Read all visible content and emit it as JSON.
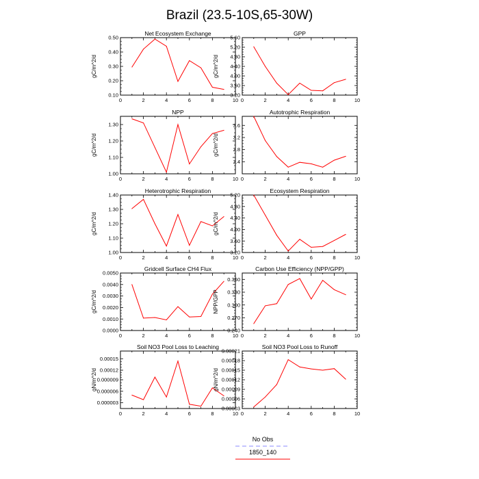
{
  "figure": {
    "title": "Brazil (23.5-10S,65-30W)"
  },
  "legend": {
    "items": [
      {
        "label": "No Obs",
        "color": "#8888ff",
        "dash": true
      },
      {
        "label": "1850_140",
        "color": "#ff0000",
        "dash": false
      }
    ]
  },
  "chart_data": [
    {
      "type": "line",
      "title": "Net Ecosystem Exchange",
      "ylabel": "gC/m^2/d",
      "xlim": [
        0,
        10
      ],
      "ylim": [
        0.1,
        0.5
      ],
      "xticks": [
        0,
        2,
        4,
        6,
        8,
        10
      ],
      "yticks": [
        "0.10",
        "0.20",
        "0.30",
        "0.40",
        "0.50"
      ],
      "x": [
        1,
        2,
        3,
        4,
        5,
        6,
        7,
        8,
        9
      ],
      "series": [
        {
          "color": "#ff0000",
          "values": [
            0.295,
            0.42,
            0.49,
            0.44,
            0.195,
            0.34,
            0.29,
            0.155,
            0.14
          ]
        }
      ]
    },
    {
      "type": "line",
      "title": "GPP",
      "ylabel": "gC/m^2/d",
      "xlim": [
        0,
        10
      ],
      "ylim": [
        3.2,
        5.6
      ],
      "xticks": [
        0,
        2,
        4,
        6,
        8,
        10
      ],
      "yticks": [
        "3.20",
        "3.60",
        "4.00",
        "4.40",
        "4.80",
        "5.20",
        "5.60"
      ],
      "x": [
        1,
        2,
        3,
        4,
        5,
        6,
        7,
        8,
        9
      ],
      "series": [
        {
          "color": "#ff0000",
          "values": [
            5.22,
            4.4,
            3.7,
            3.22,
            3.7,
            3.4,
            3.38,
            3.72,
            3.86
          ]
        }
      ]
    },
    {
      "type": "line",
      "title": "NPP",
      "ylabel": "gC/m^2/d",
      "xlim": [
        0,
        10
      ],
      "ylim": [
        1.0,
        1.35
      ],
      "xticks": [
        0,
        2,
        4,
        6,
        8,
        10
      ],
      "yticks": [
        "1.00",
        "1.10",
        "1.20",
        "1.30"
      ],
      "x": [
        1,
        2,
        3,
        4,
        5,
        6,
        7,
        8,
        9
      ],
      "series": [
        {
          "color": "#ff0000",
          "values": [
            1.335,
            1.31,
            1.16,
            1.01,
            1.3,
            1.06,
            1.165,
            1.245,
            1.265
          ]
        }
      ]
    },
    {
      "type": "line",
      "title": "Autotrophic Respiration",
      "ylabel": "gC/m^2/d",
      "xlim": [
        0,
        10
      ],
      "ylim": [
        2.0,
        3.9
      ],
      "xticks": [
        0,
        2,
        4,
        6,
        8,
        10
      ],
      "yticks": [
        "2.4",
        "2.8",
        "3.2",
        "3.6"
      ],
      "x": [
        1,
        2,
        3,
        4,
        5,
        6,
        7,
        8,
        9
      ],
      "series": [
        {
          "color": "#ff0000",
          "values": [
            3.9,
            3.1,
            2.57,
            2.22,
            2.38,
            2.33,
            2.22,
            2.45,
            2.58
          ]
        }
      ]
    },
    {
      "type": "line",
      "title": "Heterotrophic Respiration",
      "ylabel": "gC/m^2/d",
      "xlim": [
        0,
        10
      ],
      "ylim": [
        1.0,
        1.4
      ],
      "xticks": [
        0,
        2,
        4,
        6,
        8,
        10
      ],
      "yticks": [
        "1.00",
        "1.10",
        "1.20",
        "1.30",
        "1.40"
      ],
      "x": [
        1,
        2,
        3,
        4,
        5,
        6,
        7,
        8,
        9
      ],
      "series": [
        {
          "color": "#ff0000",
          "values": [
            1.305,
            1.37,
            1.2,
            1.045,
            1.265,
            1.05,
            1.215,
            1.185,
            1.25
          ]
        }
      ]
    },
    {
      "type": "line",
      "title": "Ecosystem Respiration",
      "ylabel": "gC/m^2/d",
      "xlim": [
        0,
        10
      ],
      "ylim": [
        3.2,
        5.2
      ],
      "xticks": [
        0,
        2,
        4,
        6,
        8,
        10
      ],
      "yticks": [
        "3.20",
        "3.60",
        "4.00",
        "4.40",
        "4.80",
        "5.20"
      ],
      "x": [
        1,
        2,
        3,
        4,
        5,
        6,
        7,
        8,
        9
      ],
      "series": [
        {
          "color": "#ff0000",
          "values": [
            5.2,
            4.5,
            3.8,
            3.25,
            3.66,
            3.38,
            3.41,
            3.62,
            3.83
          ]
        }
      ]
    },
    {
      "type": "line",
      "title": "Gridcell Surface CH4 Flux",
      "ylabel": "gC/m^2/d",
      "xlim": [
        0,
        10
      ],
      "ylim": [
        0.0,
        0.005
      ],
      "xticks": [
        0,
        2,
        4,
        6,
        8,
        10
      ],
      "yticks": [
        "0.0000",
        "0.0010",
        "0.0020",
        "0.0030",
        "0.0040",
        "0.0050"
      ],
      "x": [
        1,
        2,
        3,
        4,
        5,
        6,
        7,
        8,
        9
      ],
      "series": [
        {
          "color": "#ff0000",
          "values": [
            0.004,
            0.00108,
            0.00113,
            0.00092,
            0.00208,
            0.00118,
            0.00122,
            0.00316,
            0.00428
          ]
        }
      ]
    },
    {
      "type": "line",
      "title": "Carbon Use Efficiency (NPP/GPP)",
      "ylabel": "NPP/GPP",
      "xlim": [
        0,
        10
      ],
      "ylim": [
        0.24,
        0.375
      ],
      "xticks": [
        0,
        2,
        4,
        6,
        8,
        10
      ],
      "yticks": [
        "0.240",
        "0.270",
        "0.300",
        "0.330",
        "0.360"
      ],
      "x": [
        1,
        2,
        3,
        4,
        5,
        6,
        7,
        8,
        9
      ],
      "series": [
        {
          "color": "#ff0000",
          "values": [
            0.256,
            0.298,
            0.303,
            0.348,
            0.362,
            0.314,
            0.358,
            0.336,
            0.324
          ]
        }
      ]
    },
    {
      "type": "line",
      "title": "Soil NO3 Pool Loss to Leaching",
      "ylabel": "gN/m^2/d",
      "xlim": [
        0,
        10
      ],
      "ylim": [
        2e-05,
        0.00017
      ],
      "xticks": [
        0,
        2,
        4,
        6,
        8,
        10
      ],
      "yticks": [
        "0.000003",
        "0.000006",
        "0.000009",
        "0.00012",
        "0.00015"
      ],
      "x": [
        1,
        2,
        3,
        4,
        5,
        6,
        7,
        8,
        9
      ],
      "series": [
        {
          "color": "#ff0000",
          "values": [
            5.5e-05,
            4.3e-05,
            0.000102,
            5e-05,
            0.000144,
            3.1e-05,
            2.6e-05,
            7.4e-05,
            5.3e-05
          ]
        }
      ]
    },
    {
      "type": "line",
      "title": "Soil NO3 Pool Loss to Runoff",
      "ylabel": "gN/m^2/d",
      "xlim": [
        0,
        10
      ],
      "ylim": [
        3e-05,
        0.00021
      ],
      "xticks": [
        0,
        2,
        4,
        6,
        8,
        10
      ],
      "yticks": [
        "0.00003",
        "0.00006",
        "0.00009",
        "0.00012",
        "0.00015",
        "0.00018",
        "0.00021"
      ],
      "x": [
        1,
        2,
        3,
        4,
        5,
        6,
        7,
        8,
        9
      ],
      "series": [
        {
          "color": "#ff0000",
          "values": [
            3.5e-05,
            6.6e-05,
            0.000105,
            0.000183,
            0.00016,
            0.000154,
            0.00015,
            0.000155,
            0.000122
          ]
        }
      ]
    }
  ]
}
